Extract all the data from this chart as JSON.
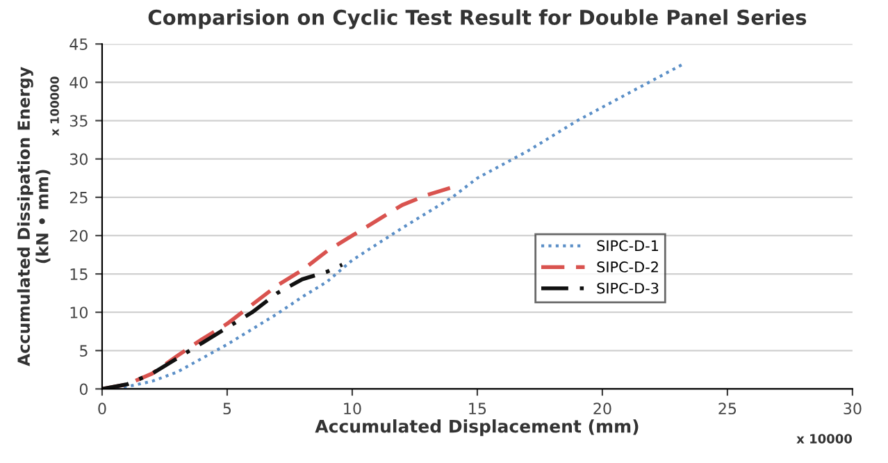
{
  "chart_data": {
    "type": "line",
    "title": "Comparision on Cyclic Test Result for Double Panel Series",
    "xlabel": "Accumulated Displacement (mm)",
    "ylabel": "Accumulated Dissipation Energy\n(kN • mm)",
    "annotations": [
      "x 100000",
      "x 10000"
    ],
    "series": [
      {
        "name": "SIPC-D-1",
        "color": "#5b8fc7",
        "line_style": "dotted",
        "x": [
          0,
          1,
          2,
          3,
          4,
          5,
          6,
          7,
          8,
          9,
          10,
          12,
          14,
          15,
          17,
          19,
          21,
          23.3
        ],
        "values": [
          0,
          0.3,
          1,
          2.2,
          4,
          5.8,
          7.8,
          9.8,
          12,
          14,
          16.8,
          21,
          25,
          27.5,
          31,
          35,
          38.5,
          42.5
        ]
      },
      {
        "name": "SIPC-D-2",
        "color": "#d9534f",
        "line_style": "dashed",
        "x": [
          0,
          1,
          2,
          3,
          4,
          5,
          6,
          7,
          8,
          9,
          10,
          11,
          12,
          13,
          14
        ],
        "values": [
          0,
          0.6,
          2,
          4.3,
          6.5,
          8.5,
          11,
          13.5,
          15.5,
          18,
          20,
          22,
          24,
          25.3,
          26.3
        ]
      },
      {
        "name": "SIPC-D-3",
        "color": "#111111",
        "line_style": "dashdot",
        "x": [
          0,
          1,
          2,
          3,
          4,
          5,
          6,
          7,
          8,
          9,
          9.6
        ],
        "values": [
          0,
          0.6,
          2,
          4,
          6,
          8,
          10,
          12.5,
          14.3,
          15.3,
          16.2
        ]
      }
    ],
    "xlim": [
      0,
      30
    ],
    "xticks": [
      0,
      5,
      10,
      15,
      20,
      25,
      30
    ],
    "ylim": [
      0,
      45
    ],
    "yticks": [
      0,
      5,
      10,
      15,
      20,
      25,
      30,
      35,
      40,
      45
    ],
    "grid": "y",
    "legend": "right"
  }
}
